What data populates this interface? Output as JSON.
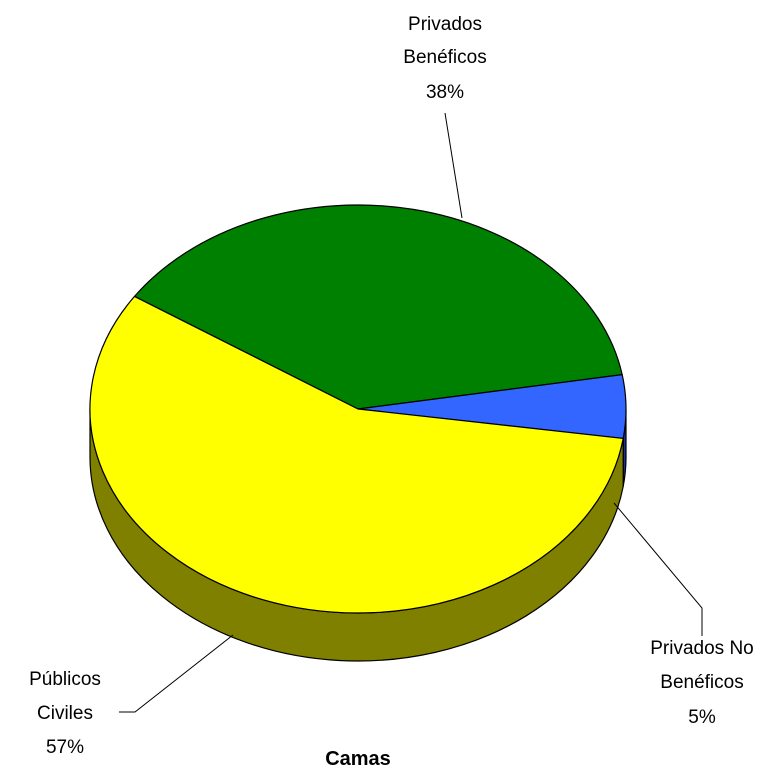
{
  "chart_data": {
    "type": "pie",
    "title": "Camas",
    "style": "3d",
    "slices": [
      {
        "label_lines": [
          "Privados",
          "Beneficos"
        ],
        "pct_label": "38%",
        "value": 38,
        "color": "#008000",
        "side_color": "#004000"
      },
      {
        "label_lines": [
          "Privados No",
          "Beneficos"
        ],
        "pct_label": "5%",
        "value": 5,
        "color": "#3366ff",
        "side_color": "#1a3399"
      },
      {
        "label_lines": [
          "Publicos",
          "Civiles"
        ],
        "pct_label": "57%",
        "value": 57,
        "color": "#ffff00",
        "side_color": "#808000"
      }
    ]
  }
}
